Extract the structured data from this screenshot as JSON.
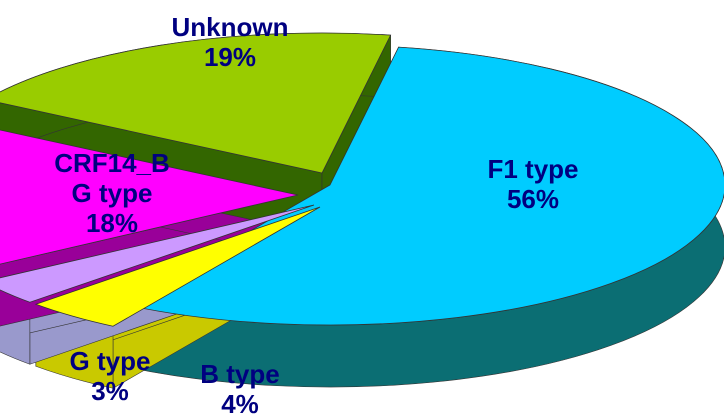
{
  "chart_data": {
    "type": "pie",
    "style": "3d-exploded",
    "slices": [
      {
        "label_lines": [
          "F1 type"
        ],
        "percent_text": "56%",
        "value": 56,
        "color": "#00ccff",
        "side_color": "#0b6e73",
        "label_color": "#000080"
      },
      {
        "label_lines": [
          "B type"
        ],
        "percent_text": "4%",
        "value": 4,
        "color": "#ffff00",
        "side_color": "#c9c900",
        "label_color": "#000080"
      },
      {
        "label_lines": [
          "G type"
        ],
        "percent_text": "3%",
        "value": 3,
        "color": "#cc99ff",
        "side_color": "#9999cc",
        "label_color": "#000080"
      },
      {
        "label_lines": [
          "CRF14_B",
          "G type"
        ],
        "percent_text": "18%",
        "value": 18,
        "color": "#ff00ff",
        "side_color": "#990099",
        "label_color": "#000080"
      },
      {
        "label_lines": [
          "Unknown"
        ],
        "percent_text": "19%",
        "value": 19,
        "color": "#99cc00",
        "side_color": "#336600",
        "label_color": "#000080"
      }
    ]
  }
}
